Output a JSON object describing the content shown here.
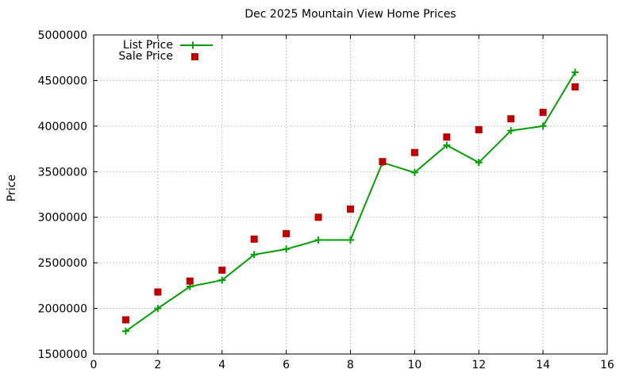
{
  "title": "Dec 2025 Mountain View Home Prices",
  "colors": {
    "list_price": "#00A000",
    "sale_price": "#C00000",
    "grid": "#ababab",
    "axis": "#000000",
    "background": "#ffffff"
  },
  "chart_data": {
    "type": "line",
    "title": "Dec 2025 Mountain View Home Prices",
    "xlabel": "",
    "ylabel": "Price",
    "xlim": [
      0,
      16
    ],
    "ylim": [
      1500000,
      5000000
    ],
    "xticks": [
      0,
      2,
      4,
      6,
      8,
      10,
      12,
      14,
      16
    ],
    "yticks": [
      1500000,
      2000000,
      2500000,
      3000000,
      3500000,
      4000000,
      4500000,
      5000000
    ],
    "grid": true,
    "legend_position": "top-left-inside",
    "x": [
      1,
      2,
      3,
      4,
      5,
      6,
      7,
      8,
      9,
      10,
      11,
      12,
      13,
      14,
      15
    ],
    "series": [
      {
        "name": "List Price",
        "style": "line-with-plus-markers",
        "color": "#00A000",
        "values": [
          1750000,
          2000000,
          2240000,
          2310000,
          2590000,
          2650000,
          2750000,
          2750000,
          3600000,
          3490000,
          3790000,
          3600000,
          3950000,
          4000000,
          4590000
        ]
      },
      {
        "name": "Sale Price",
        "style": "filled-square-markers",
        "color": "#C00000",
        "values": [
          1875000,
          2180000,
          2300000,
          2420000,
          2760000,
          2820000,
          3000000,
          3090000,
          3610000,
          3710000,
          3880000,
          3960000,
          4080000,
          4150000,
          4430000
        ]
      }
    ]
  }
}
